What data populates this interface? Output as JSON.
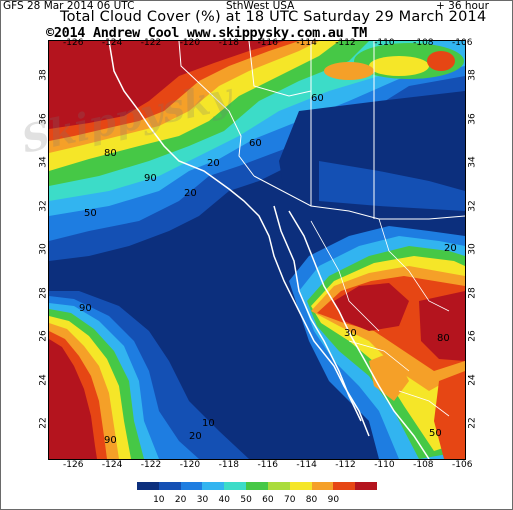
{
  "header": {
    "run": "GFS 28 Mar 2014 06 UTC",
    "region": "SthWest USA",
    "forecast_hour": "+ 36 hour",
    "title": "Total Cloud Cover (%) at 18 UTC Saturday 29 March 2014",
    "credit": "©2014 Andrew Cool  www.skippysky.com.au  TM"
  },
  "axes": {
    "lon_labels_top": [
      "-126",
      "-124",
      "-122",
      "-120",
      "-118",
      "-116",
      "-114",
      "-112",
      "-110",
      "-108",
      "-106"
    ],
    "lon_labels_bottom": [
      "-126",
      "-124",
      "-122",
      "-120",
      "-118",
      "-116",
      "-114",
      "-112",
      "-110",
      "-108",
      "-106"
    ],
    "lat_labels": [
      "22",
      "24",
      "26",
      "28",
      "30",
      "32",
      "34",
      "36",
      "38"
    ]
  },
  "map": {
    "contour_labels": [
      "80",
      "50",
      "20",
      "90",
      "20",
      "60",
      "60",
      "30",
      "80",
      "90",
      "10",
      "20",
      "90",
      "20",
      "50"
    ]
  },
  "colorbar": {
    "labels": [
      "10",
      "20",
      "30",
      "40",
      "50",
      "60",
      "70",
      "80",
      "90"
    ],
    "colors": [
      "#0c2f7d",
      "#1450b4",
      "#1e7de1",
      "#32b4f0",
      "#3cdcc8",
      "#46c846",
      "#aadc3c",
      "#f5e628",
      "#f5a028",
      "#e64614",
      "#b4141e"
    ]
  },
  "watermark": {
    "text": "Skippysky"
  }
}
